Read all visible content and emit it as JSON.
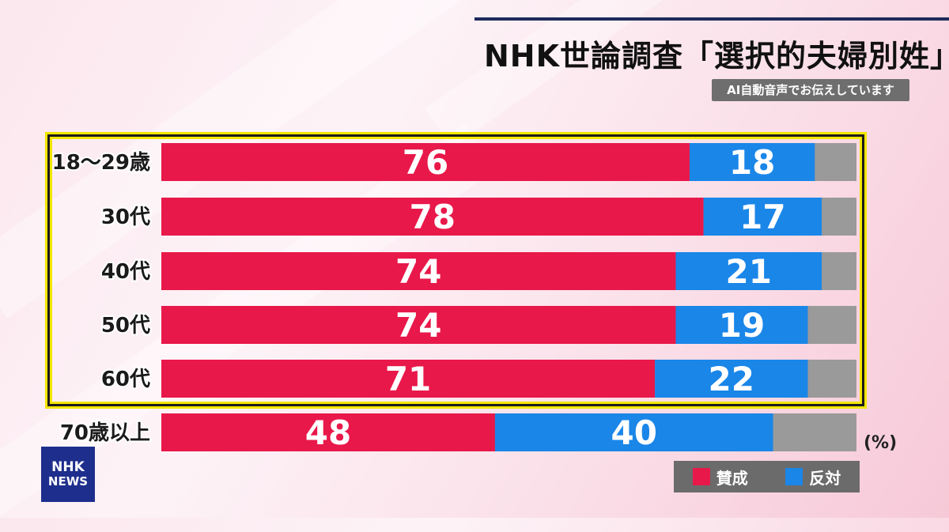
{
  "title": "NHK世論調査「選択的夫婦別姓」",
  "ai_notice": "AI自動音声でお伝えしています",
  "logo": {
    "line1": "NHK",
    "line2": "NEWS"
  },
  "colors": {
    "support": "#e8184a",
    "oppose": "#1a86e8",
    "other": "#9a9a9a",
    "highlight": "#f2e600"
  },
  "chart_data": {
    "type": "bar",
    "orientation": "horizontal",
    "stacked": true,
    "unit": "(%)",
    "categories": [
      "18〜29歳",
      "30代",
      "40代",
      "50代",
      "60代",
      "70歳以上"
    ],
    "highlighted_categories": [
      "18〜29歳",
      "30代",
      "40代",
      "50代",
      "60代"
    ],
    "series": [
      {
        "name": "賛成",
        "values": [
          76,
          78,
          74,
          74,
          71,
          48
        ]
      },
      {
        "name": "反対",
        "values": [
          18,
          17,
          21,
          19,
          22,
          40
        ]
      }
    ],
    "xlim": [
      0,
      100
    ],
    "legend": "bottom-right"
  }
}
